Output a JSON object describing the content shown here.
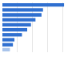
{
  "chart_data": {
    "type": "bar",
    "orientation": "horizontal",
    "categories": [
      null,
      null,
      null,
      null,
      null,
      null,
      null,
      null,
      null,
      null
    ],
    "values": [
      82,
      54,
      52,
      44,
      38,
      33,
      26,
      16,
      14,
      10
    ],
    "colors": [
      "#2f6fd0",
      "#2f6fd0",
      "#2f6fd0",
      "#2f6fd0",
      "#2f6fd0",
      "#2f6fd0",
      "#2f6fd0",
      "#2f6fd0",
      "#2f6fd0",
      "#a9c4eb"
    ],
    "xlim": [
      0,
      100
    ],
    "xticks": [
      0,
      20,
      40,
      60,
      80,
      100
    ],
    "grid": true,
    "tick_labels": false
  }
}
